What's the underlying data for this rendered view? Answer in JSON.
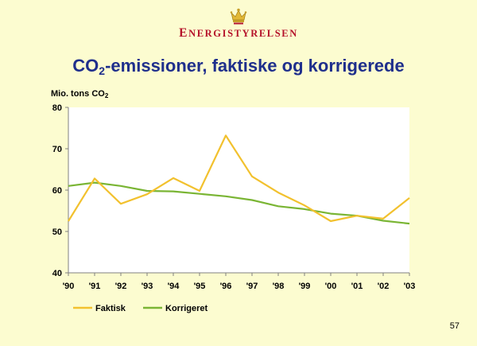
{
  "header": {
    "crown_icon": "crown-icon",
    "brand_first_letter": "E",
    "brand_rest": "NERGISTYRELSEN",
    "brand_color": "#b5122b"
  },
  "title": {
    "prefix": "CO",
    "subscript": "2",
    "suffix": "-emissioner, faktiske og korrigerede"
  },
  "ylabel": {
    "text": "Mio. tons CO",
    "subscript": "2"
  },
  "chart_data": {
    "type": "line",
    "categories": [
      "'90",
      "'91",
      "'92",
      "'93",
      "'94",
      "'95",
      "'96",
      "'97",
      "'98",
      "'99",
      "'00",
      "'01",
      "'02",
      "'03"
    ],
    "series": [
      {
        "name": "Faktisk",
        "color": "#f2c12e",
        "values": [
          52.5,
          62.8,
          56.7,
          59.0,
          62.9,
          59.8,
          73.2,
          63.3,
          59.4,
          56.3,
          52.5,
          53.8,
          53.1,
          58.1
        ]
      },
      {
        "name": "Korrigeret",
        "color": "#7ab534",
        "values": [
          61.0,
          61.8,
          61.0,
          59.8,
          59.7,
          59.1,
          58.5,
          57.6,
          56.1,
          55.4,
          54.3,
          53.8,
          52.6,
          51.9
        ]
      }
    ],
    "ylim": [
      40,
      80
    ],
    "yticks": [
      40,
      50,
      60,
      70,
      80
    ],
    "ylabel": "Mio. tons CO2",
    "legend_position": "bottom-left",
    "grid": false
  },
  "footer": {
    "page_number": "57"
  }
}
